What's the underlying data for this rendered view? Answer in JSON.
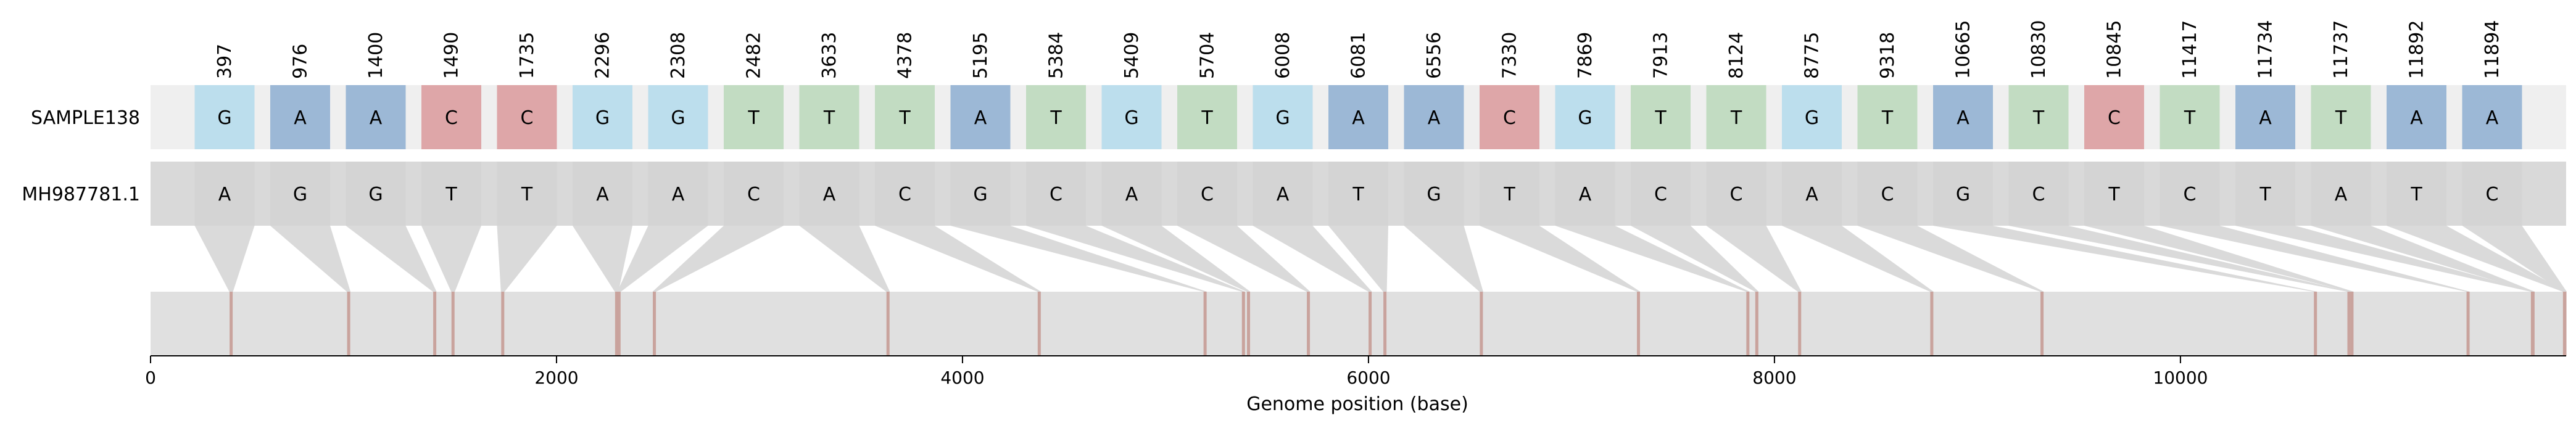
{
  "samples": {
    "reference": "SAMPLE138",
    "query": "MH987781.1"
  },
  "positions": [
    397,
    976,
    1400,
    1490,
    1735,
    2296,
    2308,
    2482,
    3633,
    4378,
    5195,
    5384,
    5409,
    5704,
    6008,
    6081,
    6556,
    7330,
    7869,
    7913,
    8124,
    8775,
    9318,
    10665,
    10830,
    10845,
    11417,
    11734,
    11737,
    11892,
    11894
  ],
  "sample_bases": [
    "G",
    "A",
    "A",
    "C",
    "C",
    "G",
    "G",
    "T",
    "T",
    "T",
    "A",
    "T",
    "G",
    "T",
    "G",
    "A",
    "A",
    "C",
    "G",
    "T",
    "T",
    "G",
    "T",
    "A",
    "T",
    "C",
    "T",
    "A",
    "T",
    "A",
    "A"
  ],
  "reference_bases": [
    "A",
    "G",
    "G",
    "T",
    "T",
    "A",
    "A",
    "C",
    "A",
    "C",
    "G",
    "C",
    "A",
    "C",
    "A",
    "T",
    "G",
    "T",
    "A",
    "C",
    "C",
    "A",
    "C",
    "G",
    "C",
    "T",
    "C",
    "T",
    "A",
    "T",
    "C"
  ],
  "base_colors": {
    "A": "#9cb8d6",
    "C": "#dea6a8",
    "G": "#bcdeed",
    "T": "#c2dcc2"
  },
  "genome_length": 11900,
  "axis": {
    "ticks": [
      0,
      2000,
      4000,
      6000,
      8000,
      10000
    ],
    "tick_labels": [
      "0",
      "2000",
      "4000",
      "6000",
      "8000",
      "10000"
    ],
    "xlabel": "Genome position (base)"
  },
  "colors": {
    "track_bg": "#e0e0e0",
    "row_bg_sample": "#efefef",
    "row_bg_reference": "#d9d9d9",
    "ref_box": "#d4d4d4",
    "connector": "#dadada",
    "marker": "#c9a39d"
  }
}
